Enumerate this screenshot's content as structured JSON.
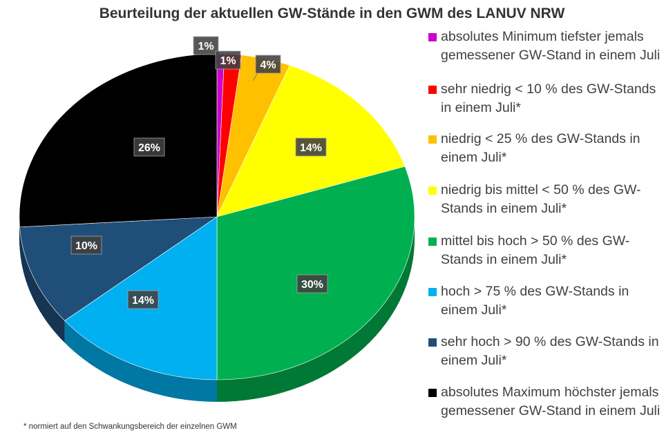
{
  "chart_data": {
    "type": "pie",
    "title": "Beurteilung der aktuellen GW-Stände in den GWM des LANUV NRW",
    "footnote": "* normiert auf den Schwankungsbereich der einzelnen GWM",
    "slices": [
      {
        "label": "absolutes Minimum  tiefster jemals gemessener GW-Stand in einem Juli",
        "value": 0.6,
        "display": "1%",
        "color": "#CC00CC"
      },
      {
        "label": "sehr niedrig  < 10 % des GW-Stands in einem Juli*",
        "value": 1.4,
        "display": "1%",
        "color": "#FF0000"
      },
      {
        "label": "niedrig   < 25 % des GW-Stands in einem Juli*",
        "value": 4,
        "display": "4%",
        "color": "#FFC000"
      },
      {
        "label": "niedrig bis mittel  < 50 % des GW-Stands in einem Juli*",
        "value": 14,
        "display": "14%",
        "color": "#FFFF00"
      },
      {
        "label": "mittel bis hoch  > 50 % des GW-Stands in einem Juli*",
        "value": 30,
        "display": "30%",
        "color": "#00B050"
      },
      {
        "label": "hoch  > 75 % des GW-Stands in einem Juli*",
        "value": 14,
        "display": "14%",
        "color": "#00B0F0"
      },
      {
        "label": "sehr hoch  > 90 % des GW-Stands in einem Juli*",
        "value": 10,
        "display": "10%",
        "color": "#1F4E79"
      },
      {
        "label": "absolutes Maximum  höchster jemals gemessener GW-Stand in einem Juli",
        "value": 26,
        "display": "26%",
        "color": "#000000"
      }
    ],
    "legend_position": "right"
  }
}
